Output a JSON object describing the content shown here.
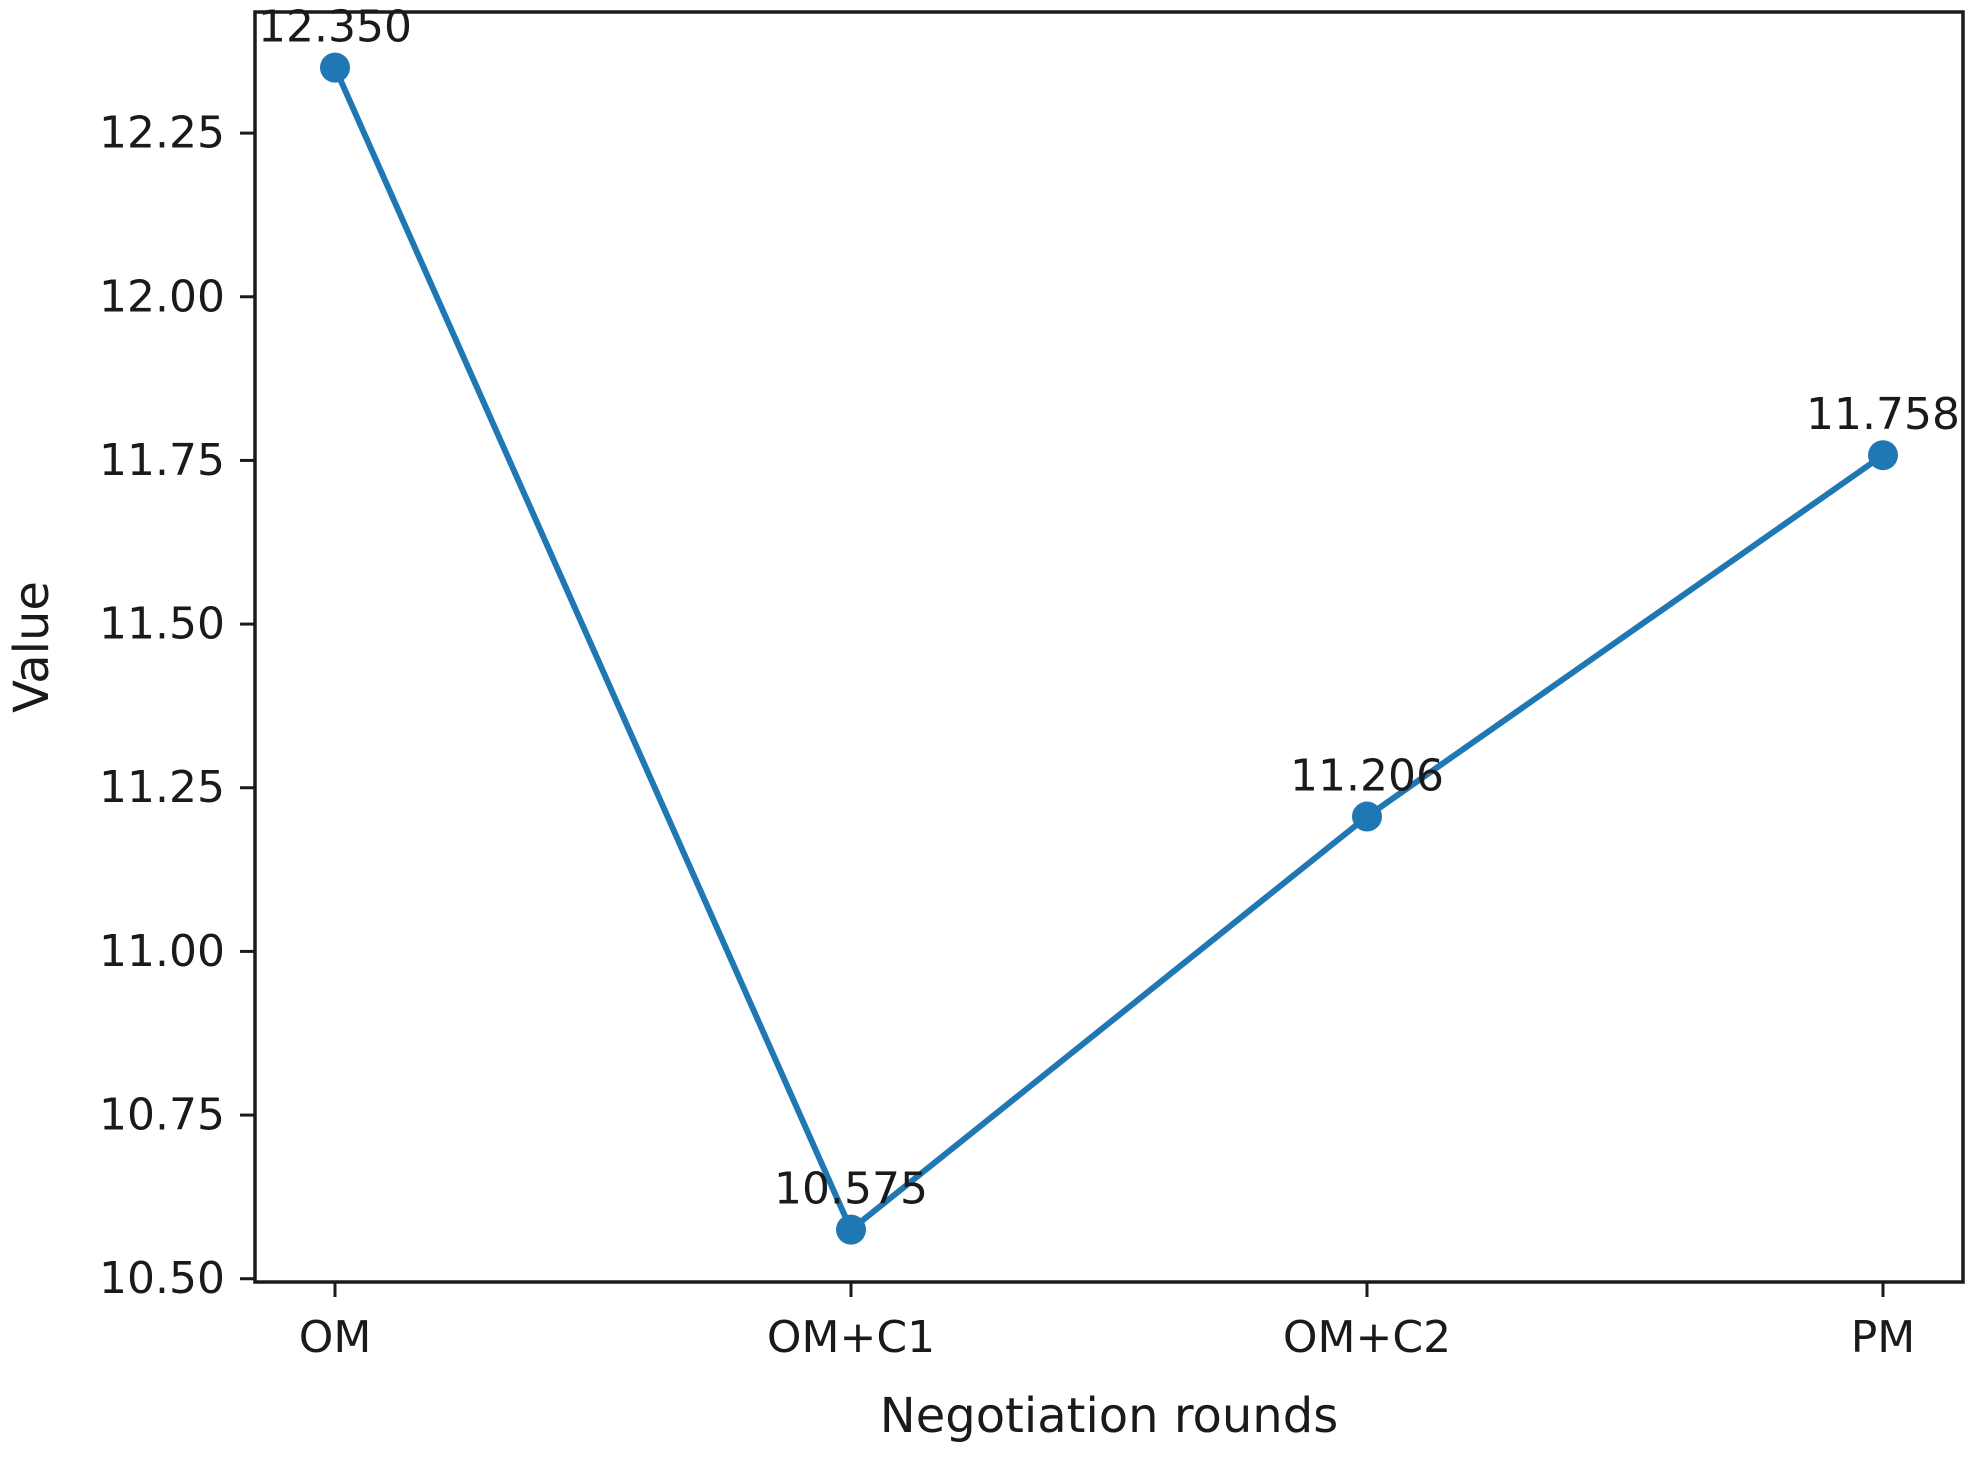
{
  "chart_data": {
    "type": "line",
    "title": "",
    "xlabel": "Negotiation rounds",
    "ylabel": "Value",
    "categories": [
      "OM",
      "OM+C1",
      "OM+C2",
      "PM"
    ],
    "series": [
      {
        "name": "Value",
        "values": [
          12.35,
          10.575,
          11.206,
          11.758
        ],
        "point_labels": [
          "12.350",
          "10.575",
          "11.206",
          "11.758"
        ]
      }
    ],
    "ylim": [
      10.495,
      12.435
    ],
    "yticks": [
      10.5,
      10.75,
      11.0,
      11.25,
      11.5,
      11.75,
      12.0,
      12.25
    ],
    "ytick_labels": [
      "10.50",
      "10.75",
      "11.00",
      "11.25",
      "11.50",
      "11.75",
      "12.00",
      "12.25"
    ],
    "grid": false,
    "legend_position": "none",
    "line_color": "#1f77b4",
    "marker": "circle",
    "marker_color": "#1f77b4",
    "frame_color": "#1a1a1a",
    "text_color": "#1a1a1a",
    "background_color": "#ffffff"
  }
}
